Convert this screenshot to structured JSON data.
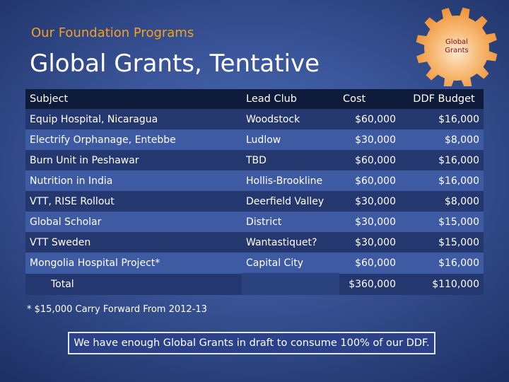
{
  "header": {
    "subtitle": "Our Foundation Programs",
    "title": "Global Grants, Tentative"
  },
  "badge": {
    "label_line1": "Global",
    "label_line2": "Grants",
    "icon": "gear-icon",
    "color": "#f39a2c"
  },
  "table": {
    "columns": [
      "Subject",
      "Lead Club",
      "Cost",
      "DDF Budget"
    ],
    "rows": [
      {
        "subject": "Equip Hospital, Nicaragua",
        "club": "Woodstock",
        "cost": "$60,000",
        "budget": "$16,000"
      },
      {
        "subject": "Electrify Orphanage, Entebbe",
        "club": "Ludlow",
        "cost": "$30,000",
        "budget": "$8,000"
      },
      {
        "subject": "Burn Unit in Peshawar",
        "club": "TBD",
        "cost": "$60,000",
        "budget": "$16,000"
      },
      {
        "subject": "Nutrition in India",
        "club": "Hollis-Brookline",
        "cost": "$60,000",
        "budget": "$16,000"
      },
      {
        "subject": "VTT, RISE Rollout",
        "club": "Deerfield Valley",
        "cost": "$30,000",
        "budget": "$8,000"
      },
      {
        "subject": "Global Scholar",
        "club": "District",
        "cost": "$30,000",
        "budget": "$15,000"
      },
      {
        "subject": "VTT Sweden",
        "club": "Wantastiquet?",
        "cost": "$30,000",
        "budget": "$15,000"
      },
      {
        "subject": "Mongolia Hospital Project*",
        "club": "Capital City",
        "cost": "$60,000",
        "budget": "$16,000"
      }
    ],
    "total": {
      "label": "Total",
      "cost": "$360,000",
      "budget": "$110,000"
    }
  },
  "footnote": "* $15,000 Carry Forward From 2012-13",
  "callout": "We have enough Global Grants in draft to consume 100% of our DDF.",
  "colors": {
    "accent": "#f5a020",
    "row_dark": "#24386f",
    "row_light": "#3d5aa2",
    "header_bg": "#0d1a3a"
  }
}
